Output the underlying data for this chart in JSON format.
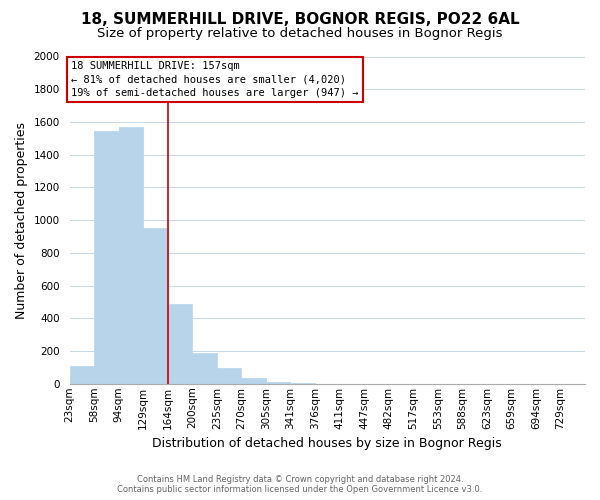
{
  "title": "18, SUMMERHILL DRIVE, BOGNOR REGIS, PO22 6AL",
  "subtitle": "Size of property relative to detached houses in Bognor Regis",
  "xlabel": "Distribution of detached houses by size in Bognor Regis",
  "ylabel": "Number of detached properties",
  "bar_labels": [
    "23sqm",
    "58sqm",
    "94sqm",
    "129sqm",
    "164sqm",
    "200sqm",
    "235sqm",
    "270sqm",
    "305sqm",
    "341sqm",
    "376sqm",
    "411sqm",
    "447sqm",
    "482sqm",
    "517sqm",
    "553sqm",
    "588sqm",
    "623sqm",
    "659sqm",
    "694sqm",
    "729sqm"
  ],
  "bar_values": [
    110,
    1545,
    1570,
    950,
    490,
    190,
    95,
    35,
    10,
    5,
    0,
    0,
    0,
    0,
    0,
    0,
    0,
    0,
    0,
    0,
    0
  ],
  "bar_color": "#b8d4ea",
  "bar_edge_color": "#b8d4ea",
  "ylim": [
    0,
    2000
  ],
  "yticks": [
    0,
    200,
    400,
    600,
    800,
    1000,
    1200,
    1400,
    1600,
    1800,
    2000
  ],
  "property_line_color": "#cc0000",
  "annotation_line1": "18 SUMMERHILL DRIVE: 157sqm",
  "annotation_line2": "← 81% of detached houses are smaller (4,020)",
  "annotation_line3": "19% of semi-detached houses are larger (947) →",
  "annotation_box_color": "#ffffff",
  "annotation_border_color": "#cc0000",
  "footer_line1": "Contains HM Land Registry data © Crown copyright and database right 2024.",
  "footer_line2": "Contains public sector information licensed under the Open Government Licence v3.0.",
  "background_color": "#ffffff",
  "grid_color": "#c8d8e8",
  "title_fontsize": 11,
  "subtitle_fontsize": 9.5,
  "axis_label_fontsize": 9,
  "tick_fontsize": 7.5,
  "footer_fontsize": 6
}
